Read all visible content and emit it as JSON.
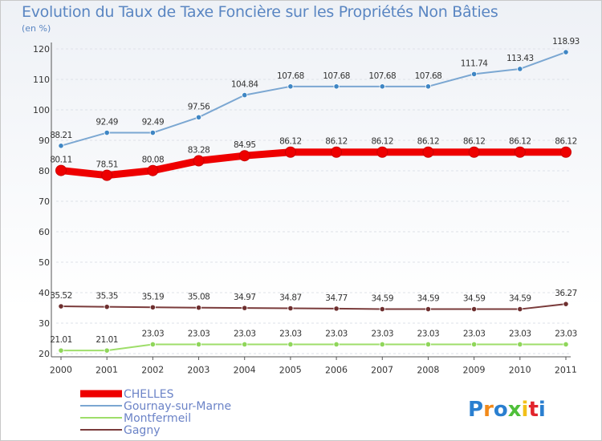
{
  "title": "Evolution du Taux de Taxe Foncière sur les Propriétés Non Bâties",
  "unit_label": "(en %)",
  "logo": "Proxiti",
  "chart_data": {
    "type": "line",
    "x": [
      2000,
      2001,
      2002,
      2003,
      2004,
      2005,
      2006,
      2007,
      2008,
      2009,
      2010,
      2011
    ],
    "x_labels": [
      "2000",
      "2001",
      "2002",
      "2003",
      "2004",
      "2005",
      "2006",
      "2007",
      "2008",
      "2009",
      "2010",
      "2011"
    ],
    "y_ticks": [
      "20",
      "30",
      "40",
      "50",
      "60",
      "70",
      "80",
      "90",
      "100",
      "110",
      "120"
    ],
    "ylim": [
      20,
      120
    ],
    "series": [
      {
        "name": "Gournay-sur-Marne",
        "color": "#7ba7d2",
        "marker": "#3f86c4",
        "values": [
          88.21,
          92.49,
          92.49,
          97.56,
          104.84,
          107.68,
          107.68,
          107.68,
          107.68,
          111.74,
          113.43,
          118.93
        ],
        "labels": [
          "88.21",
          "92.49",
          "92.49",
          "97.56",
          "104.84",
          "107.68",
          "107.68",
          "107.68",
          "107.68",
          "111.74",
          "113.43",
          "118.93"
        ]
      },
      {
        "name": "CHELLES",
        "color": "#ee0000",
        "marker": "#ee0000",
        "values": [
          80.11,
          78.51,
          80.08,
          83.28,
          84.95,
          86.12,
          86.12,
          86.12,
          86.12,
          86.12,
          86.12,
          86.12
        ],
        "labels": [
          "80.11",
          "78.51",
          "80.08",
          "83.28",
          "84.95",
          "86.12",
          "86.12",
          "86.12",
          "86.12",
          "86.12",
          "86.12",
          "86.12"
        ]
      },
      {
        "name": "Gagny",
        "color": "#7a3b3b",
        "marker": "#6e2f2f",
        "values": [
          35.52,
          35.35,
          35.19,
          35.08,
          34.97,
          34.87,
          34.77,
          34.59,
          34.59,
          34.59,
          34.59,
          36.27
        ],
        "labels": [
          "35.52",
          "35.35",
          "35.19",
          "35.08",
          "34.97",
          "34.87",
          "34.77",
          "34.59",
          "34.59",
          "34.59",
          "34.59",
          "36.27"
        ]
      },
      {
        "name": "Montfermeil",
        "color": "#9ede6a",
        "marker": "#8fd65a",
        "values": [
          21.01,
          21.01,
          23.03,
          23.03,
          23.03,
          23.03,
          23.03,
          23.03,
          23.03,
          23.03,
          23.03,
          23.03
        ],
        "labels": [
          "21.01",
          "21.01",
          "23.03",
          "23.03",
          "23.03",
          "23.03",
          "23.03",
          "23.03",
          "23.03",
          "23.03",
          "23.03",
          "23.03"
        ]
      }
    ],
    "legend": [
      "CHELLES",
      "Gournay-sur-Marne",
      "Montfermeil",
      "Gagny"
    ],
    "legend_position": "bottom-left"
  }
}
